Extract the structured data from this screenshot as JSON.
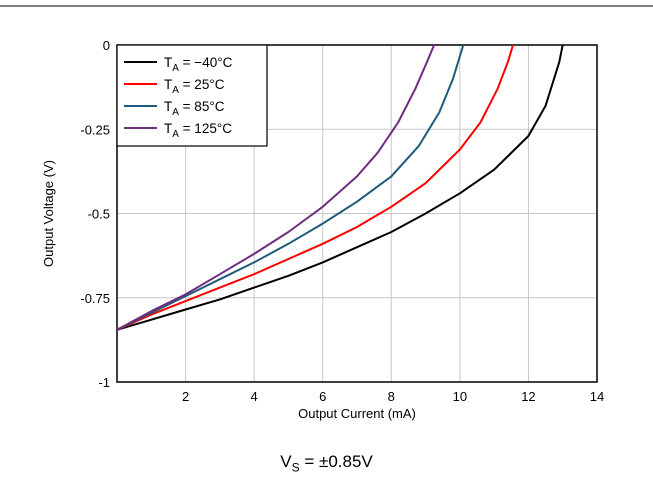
{
  "chart_data": {
    "type": "line",
    "title": "",
    "xlabel": "Output Current (mA)",
    "ylabel": "Output Voltage (V)",
    "xlim": [
      0,
      14
    ],
    "ylim": [
      -1,
      0
    ],
    "x_ticks": [
      "2",
      "4",
      "6",
      "8",
      "10",
      "12",
      "14"
    ],
    "y_ticks": [
      "0",
      "-0.25",
      "-0.5",
      "-0.75",
      "-1"
    ],
    "grid": true,
    "legend_position": "top-left",
    "series": [
      {
        "name": "TA = −40°C",
        "name_main": "T",
        "name_sub": "A",
        "name_rest": " = −40°C",
        "color": "#000000",
        "points": [
          [
            0,
            -0.845
          ],
          [
            1,
            -0.815
          ],
          [
            2,
            -0.785
          ],
          [
            3,
            -0.755
          ],
          [
            4,
            -0.72
          ],
          [
            5,
            -0.685
          ],
          [
            6,
            -0.645
          ],
          [
            7,
            -0.6
          ],
          [
            8,
            -0.555
          ],
          [
            9,
            -0.5
          ],
          [
            10,
            -0.44
          ],
          [
            11,
            -0.37
          ],
          [
            12,
            -0.27
          ],
          [
            12.5,
            -0.18
          ],
          [
            12.9,
            -0.05
          ],
          [
            13.0,
            0
          ]
        ]
      },
      {
        "name": "TA = 25°C",
        "name_main": "T",
        "name_sub": "A",
        "name_rest": " = 25°C",
        "color": "#ff0000",
        "points": [
          [
            0,
            -0.845
          ],
          [
            1,
            -0.8
          ],
          [
            2,
            -0.76
          ],
          [
            3,
            -0.72
          ],
          [
            4,
            -0.68
          ],
          [
            5,
            -0.635
          ],
          [
            6,
            -0.59
          ],
          [
            7,
            -0.54
          ],
          [
            8,
            -0.48
          ],
          [
            9,
            -0.41
          ],
          [
            10,
            -0.31
          ],
          [
            10.6,
            -0.23
          ],
          [
            11.1,
            -0.13
          ],
          [
            11.4,
            -0.05
          ],
          [
            11.55,
            0
          ]
        ]
      },
      {
        "name": "TA = 85°C",
        "name_main": "T",
        "name_sub": "A",
        "name_rest": " = 85°C",
        "color": "#1f5a7a",
        "points": [
          [
            0,
            -0.845
          ],
          [
            1,
            -0.795
          ],
          [
            2,
            -0.745
          ],
          [
            3,
            -0.695
          ],
          [
            4,
            -0.645
          ],
          [
            5,
            -0.59
          ],
          [
            6,
            -0.53
          ],
          [
            7,
            -0.465
          ],
          [
            8,
            -0.39
          ],
          [
            8.8,
            -0.3
          ],
          [
            9.4,
            -0.2
          ],
          [
            9.8,
            -0.1
          ],
          [
            10.1,
            0
          ]
        ]
      },
      {
        "name": "TA = 125°C",
        "name_main": "T",
        "name_sub": "A",
        "name_rest": " = 125°C",
        "color": "#6f2d7f",
        "points": [
          [
            0,
            -0.845
          ],
          [
            1,
            -0.79
          ],
          [
            2,
            -0.74
          ],
          [
            3,
            -0.68
          ],
          [
            4,
            -0.62
          ],
          [
            5,
            -0.555
          ],
          [
            6,
            -0.48
          ],
          [
            7,
            -0.39
          ],
          [
            7.6,
            -0.32
          ],
          [
            8.2,
            -0.23
          ],
          [
            8.7,
            -0.13
          ],
          [
            9.0,
            -0.06
          ],
          [
            9.25,
            0
          ]
        ]
      }
    ]
  },
  "caption": {
    "main": "V",
    "sub": "S",
    "rest": " = ±0.85V"
  }
}
